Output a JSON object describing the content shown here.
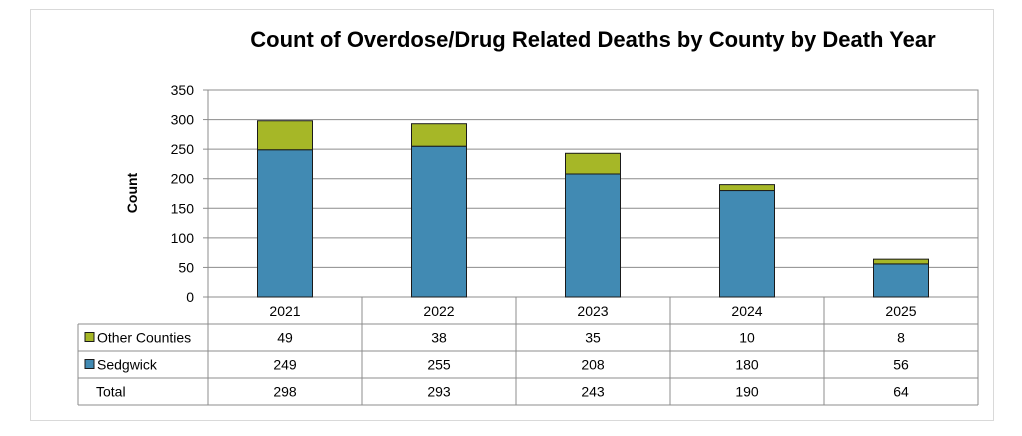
{
  "chart_data": {
    "type": "bar",
    "stacked": true,
    "title": "Count of Overdose/Drug Related Deaths by County by Death Year",
    "xlabel": "",
    "ylabel": "Count",
    "ylim": [
      0,
      350
    ],
    "yticks": [
      0,
      50,
      100,
      150,
      200,
      250,
      300,
      350
    ],
    "grid": true,
    "categories": [
      "2021",
      "2022",
      "2023",
      "2024",
      "2025"
    ],
    "series": [
      {
        "name": "Sedgwick",
        "values": [
          249,
          255,
          208,
          180,
          56
        ],
        "color": "#418ab3"
      },
      {
        "name": "Other Counties",
        "values": [
          49,
          38,
          35,
          10,
          8
        ],
        "color": "#a6b727"
      }
    ],
    "data_table": {
      "rows": [
        {
          "label": "Other Counties",
          "series": "Other Counties",
          "values": [
            "49",
            "38",
            "35",
            "10",
            "8"
          ]
        },
        {
          "label": "Sedgwick",
          "series": "Sedgwick",
          "values": [
            "249",
            "255",
            "208",
            "180",
            "56"
          ]
        },
        {
          "label": "Total",
          "series": null,
          "values": [
            "298",
            "293",
            "243",
            "190",
            "64"
          ]
        }
      ]
    }
  }
}
